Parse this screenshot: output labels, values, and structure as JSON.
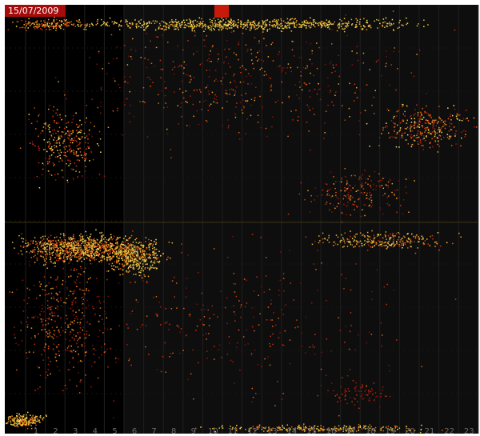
{
  "date_label": "15/07/2009",
  "column_labels": [
    "1",
    "2",
    "3",
    "4",
    "5",
    "6",
    "7",
    "8",
    "9",
    "10",
    "11",
    "12",
    "13",
    "14",
    "15",
    "16",
    "17",
    "18",
    "19",
    "20",
    "21",
    "22",
    "23"
  ]
}
